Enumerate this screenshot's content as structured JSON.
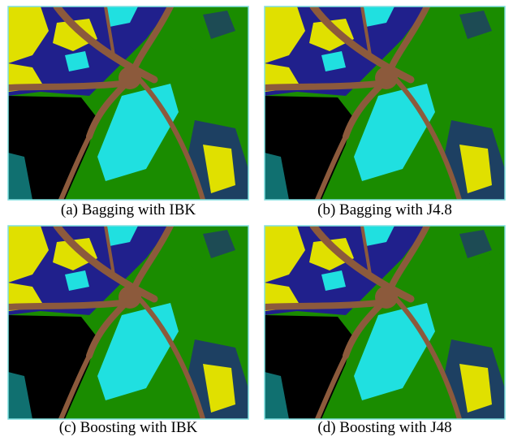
{
  "figure": {
    "captions": [
      "(a) Bagging with IBK",
      "(b) Bagging with J4.8",
      "(c) Boosting with IBK",
      "(d) Boosting with J48"
    ]
  }
}
